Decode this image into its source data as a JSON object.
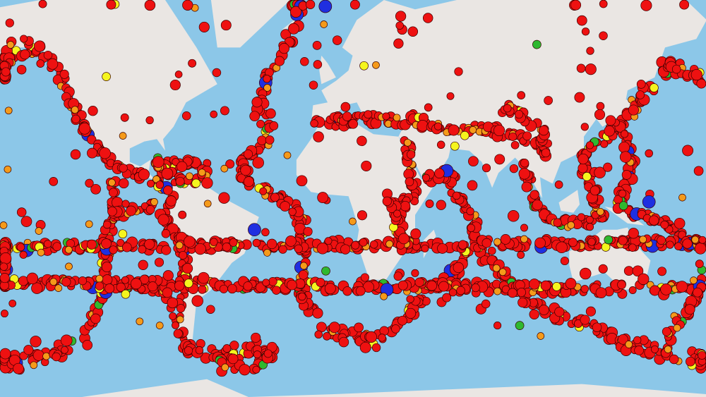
{
  "map": {
    "ocean_color": "#8cc7e8",
    "land_color": "#eae6e3",
    "marker_colors": {
      "major": "#1f2fe0",
      "strong": "#2fb82f",
      "moderate": "#f5f51e",
      "light": "#f59a1a",
      "minor": "#ee1111"
    },
    "marker_outline": "#3a0000"
  }
}
